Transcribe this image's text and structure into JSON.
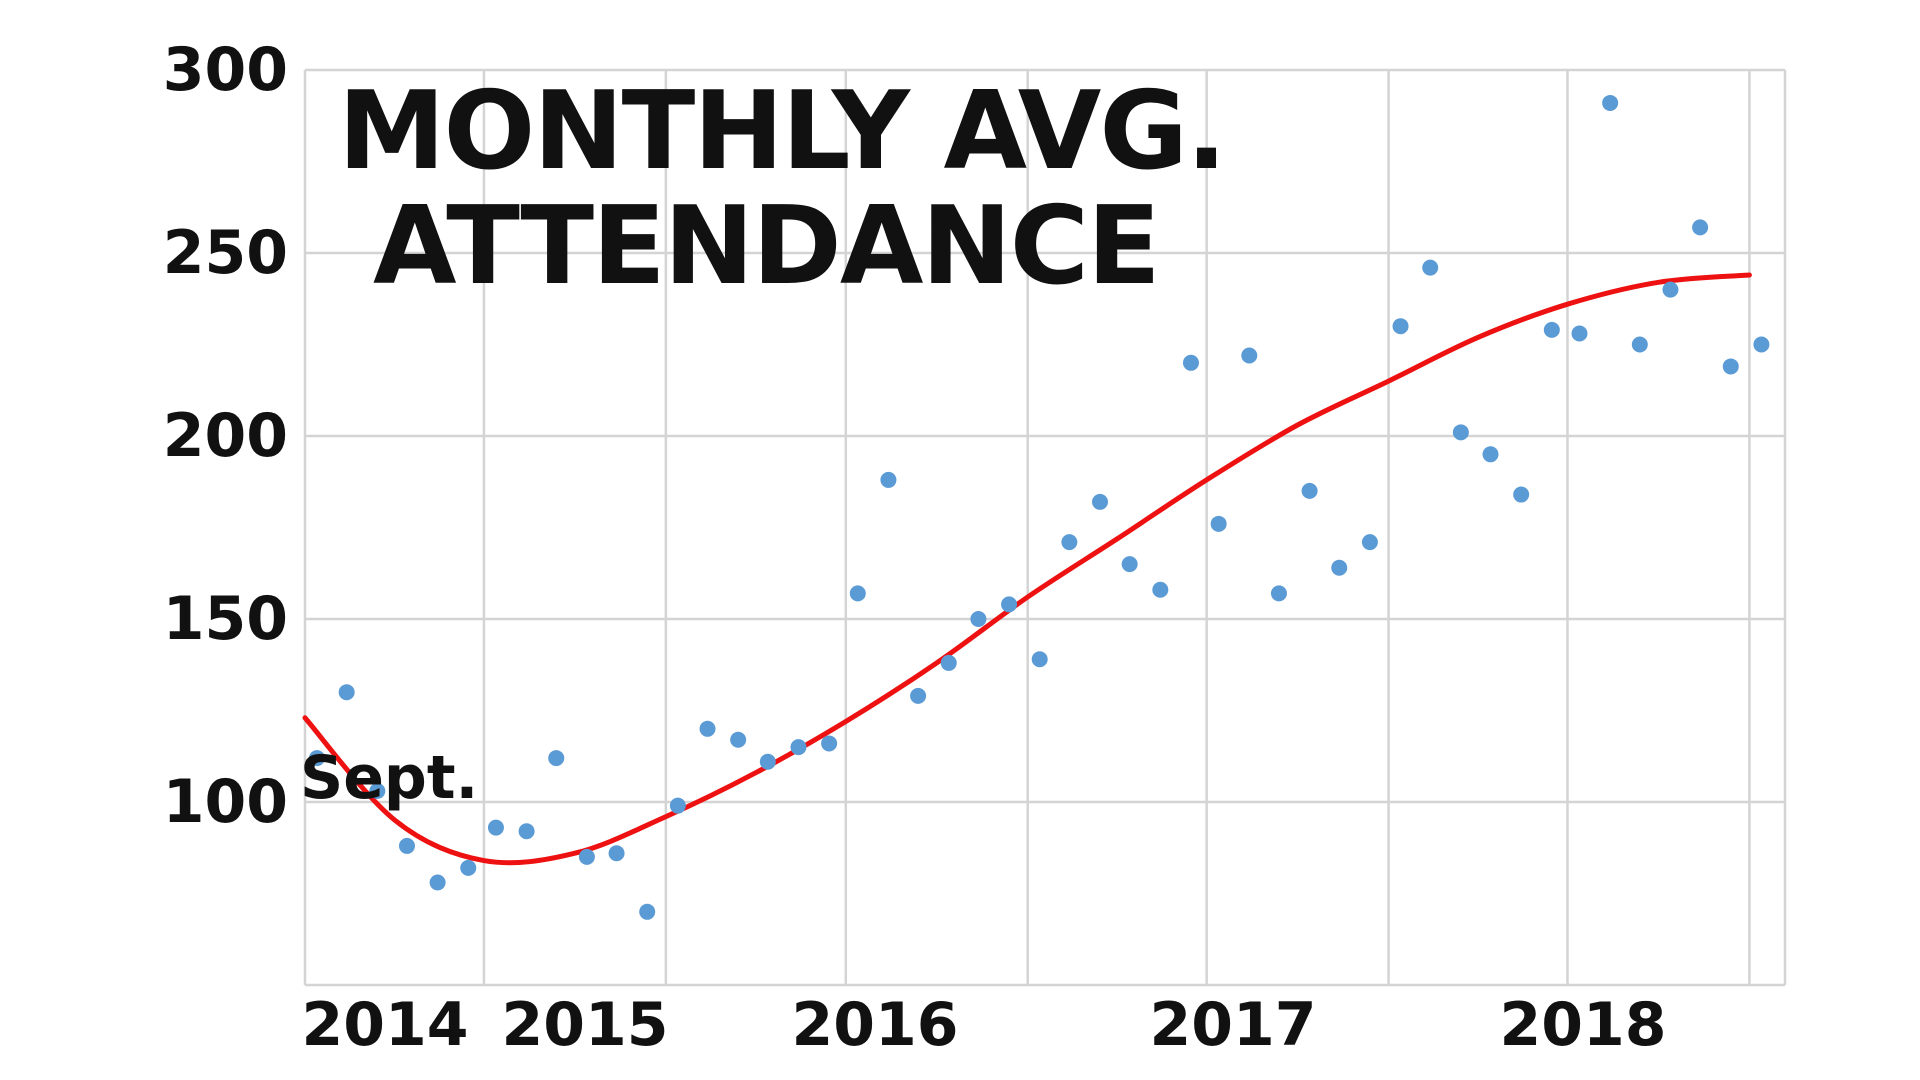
{
  "chart_data": {
    "type": "scatter",
    "title_lines": [
      "MONTHLY AVG.",
      "ATTENDANCE"
    ],
    "xlabel": "",
    "ylabel": "",
    "annotation": "Sept.",
    "x_ticks": [
      "2014",
      "2015",
      "2016",
      "2017",
      "2018"
    ],
    "y_ticks": [
      "300",
      "250",
      "200",
      "150",
      "100"
    ],
    "ylim": [
      50,
      300
    ],
    "grid": true,
    "colors": {
      "points": "#5b9bd5",
      "trend": "#ee1111",
      "grid": "#d4d4d4"
    },
    "series": [
      {
        "type": "scatter",
        "points": [
          [
            "2014-09",
            112
          ],
          [
            "2014-10",
            130
          ],
          [
            "2014-11",
            103
          ],
          [
            "2014-12",
            88
          ],
          [
            "2015-01",
            78
          ],
          [
            "2015-02",
            82
          ],
          [
            "2015-03",
            93
          ],
          [
            "2015-04",
            92
          ],
          [
            "2015-05",
            112
          ],
          [
            "2015-06",
            85
          ],
          [
            "2015-07",
            86
          ],
          [
            "2015-08",
            70
          ],
          [
            "2015-09",
            99
          ],
          [
            "2015-10",
            120
          ],
          [
            "2015-11",
            117
          ],
          [
            "2015-12",
            111
          ],
          [
            "2016-01",
            115
          ],
          [
            "2016-02",
            116
          ],
          [
            "2016-03",
            157
          ],
          [
            "2016-04",
            188
          ],
          [
            "2016-05",
            129
          ],
          [
            "2016-06",
            138
          ],
          [
            "2016-07",
            150
          ],
          [
            "2016-08",
            154
          ],
          [
            "2016-09",
            139
          ],
          [
            "2016-10",
            171
          ],
          [
            "2016-11",
            182
          ],
          [
            "2016-12",
            165
          ],
          [
            "2017-01",
            158
          ],
          [
            "2017-02",
            220
          ],
          [
            "2017-03",
            176
          ],
          [
            "2017-04",
            222
          ],
          [
            "2017-05",
            157
          ],
          [
            "2017-06",
            185
          ],
          [
            "2017-07",
            164
          ],
          [
            "2017-08",
            171
          ],
          [
            "2017-09",
            230
          ],
          [
            "2017-10",
            246
          ],
          [
            "2017-11",
            201
          ],
          [
            "2017-12",
            195
          ],
          [
            "2018-01",
            184
          ],
          [
            "2018-02",
            229
          ],
          [
            "2018-03",
            228
          ],
          [
            "2018-04",
            291
          ],
          [
            "2018-05",
            225
          ],
          [
            "2018-06",
            240
          ],
          [
            "2018-07",
            257
          ],
          [
            "2018-08",
            219
          ],
          [
            "2018-09",
            225
          ]
        ]
      },
      {
        "type": "line",
        "points": [
          [
            "2014-09",
            123
          ],
          [
            "2014-12",
            95
          ],
          [
            "2015-03",
            84
          ],
          [
            "2015-06",
            86
          ],
          [
            "2015-09",
            96
          ],
          [
            "2015-12",
            108
          ],
          [
            "2016-03",
            122
          ],
          [
            "2016-06",
            138
          ],
          [
            "2016-09",
            156
          ],
          [
            "2016-12",
            172
          ],
          [
            "2017-03",
            188
          ],
          [
            "2017-06",
            203
          ],
          [
            "2017-09",
            215
          ],
          [
            "2017-12",
            227
          ],
          [
            "2018-03",
            236
          ],
          [
            "2018-06",
            242
          ],
          [
            "2018-09",
            244
          ]
        ]
      }
    ]
  }
}
